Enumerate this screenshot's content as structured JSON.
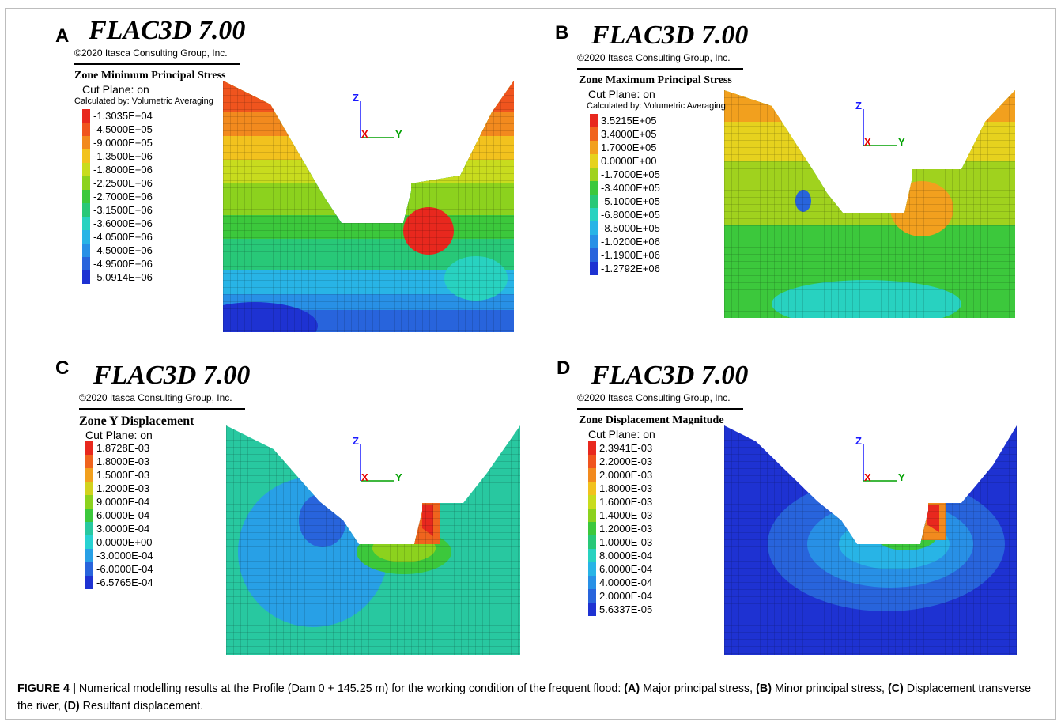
{
  "app_title": "FLAC3D 7.00",
  "copyright": "©2020 Itasca Consulting Group, Inc.",
  "cut_plane": "Cut Plane: on",
  "calc_by": "Calculated by: Volumetric Averaging",
  "axis_labels": {
    "z": "Z",
    "x": "X",
    "y": "Y"
  },
  "panels": [
    {
      "letter": "A",
      "legend_title": "Zone Minimum Principal Stress",
      "show_calc_by": true,
      "legend": [
        "-1.3035E+04",
        "-4.5000E+05",
        "-9.0000E+05",
        "-1.3500E+06",
        "-1.8000E+06",
        "-2.2500E+06",
        "-2.7000E+06",
        "-3.1500E+06",
        "-3.6000E+06",
        "-4.0500E+06",
        "-4.5000E+06",
        "-4.9500E+06",
        "-5.0914E+06"
      ],
      "colors": [
        "#e8281e",
        "#f0541e",
        "#f28a1e",
        "#f2c21e",
        "#c8dc1e",
        "#8cd21e",
        "#3cc83c",
        "#28c878",
        "#28d2c0",
        "#28b4e6",
        "#2890e6",
        "#2864dc",
        "#1e32d2"
      ]
    },
    {
      "letter": "B",
      "legend_title": "Zone Maximum Principal Stress",
      "show_calc_by": true,
      "legend": [
        "3.5215E+05",
        "3.4000E+05",
        "1.7000E+05",
        "0.0000E+00",
        "-1.7000E+05",
        "-3.4000E+05",
        "-5.1000E+05",
        "-6.8000E+05",
        "-8.5000E+05",
        "-1.0200E+06",
        "-1.1900E+06",
        "-1.2792E+06"
      ],
      "colors": [
        "#e8281e",
        "#f0641e",
        "#f2a01e",
        "#e6d21e",
        "#a0d21e",
        "#3cc83c",
        "#28c878",
        "#28d2c0",
        "#28b4e6",
        "#2890e6",
        "#2864dc",
        "#1e32d2"
      ]
    },
    {
      "letter": "C",
      "legend_title": "Zone Y Displacement",
      "show_calc_by": false,
      "legend": [
        "1.8728E-03",
        "1.8000E-03",
        "1.5000E-03",
        "1.2000E-03",
        "9.0000E-04",
        "6.0000E-04",
        "3.0000E-04",
        "0.0000E+00",
        "-3.0000E-04",
        "-6.0000E-04",
        "-6.5765E-04"
      ],
      "colors": [
        "#e8281e",
        "#f0641e",
        "#f2a01e",
        "#d2d21e",
        "#8cd21e",
        "#3cc83c",
        "#28c8a0",
        "#28d2d2",
        "#28a0e6",
        "#2864dc",
        "#1e32d2"
      ]
    },
    {
      "letter": "D",
      "legend_title": "Zone Displacement Magnitude",
      "show_calc_by": false,
      "legend": [
        "2.3941E-03",
        "2.2000E-03",
        "2.0000E-03",
        "1.8000E-03",
        "1.6000E-03",
        "1.4000E-03",
        "1.2000E-03",
        "1.0000E-03",
        "8.0000E-04",
        "6.0000E-04",
        "4.0000E-04",
        "2.0000E-04",
        "5.6337E-05"
      ],
      "colors": [
        "#e8281e",
        "#f0541e",
        "#f28a1e",
        "#f2c21e",
        "#c8dc1e",
        "#8cd21e",
        "#3cc83c",
        "#28c878",
        "#28d2c0",
        "#28b4e6",
        "#2890e6",
        "#2864dc",
        "#1e32d2"
      ]
    }
  ],
  "caption": {
    "label": "FIGURE 4 |",
    "text": " Numerical modelling results at the Profile (Dam 0 + 145.25 m) for the working condition of the frequent flood: ",
    "parts": [
      {
        "key": "(A)",
        "text": " Major principal stress, "
      },
      {
        "key": "(B)",
        "text": " Minor principal stress, "
      },
      {
        "key": "(C)",
        "text": " Displacement transverse the river, "
      },
      {
        "key": "(D)",
        "text": " Resultant displacement."
      }
    ]
  }
}
